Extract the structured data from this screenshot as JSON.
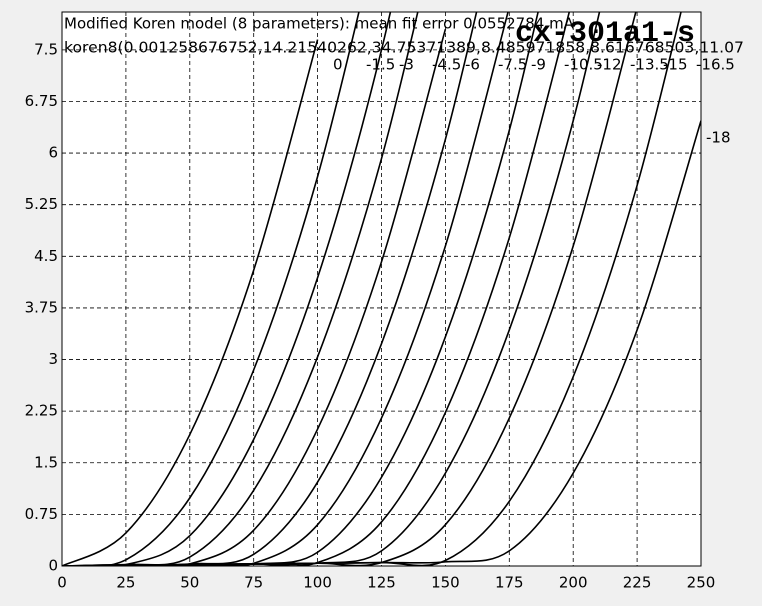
{
  "chart_data": {
    "type": "line",
    "title": "Modified Koren model (8 parameters): mean fit error 0.0552784 mA",
    "subtitle": "koren8(0.001258676752,14.21540262,34.75371389,8.485971858,8.616768503,11.07",
    "annotation": "cx-301a1-s",
    "x": [
      0,
      25,
      50,
      75,
      100,
      125,
      150,
      175,
      200,
      225,
      250
    ],
    "series": [
      {
        "name": "0",
        "color": "#000000",
        "values": [
          0,
          0.48,
          1.91,
          4.3,
          7.65,
          null,
          null,
          null,
          null,
          null,
          null
        ]
      },
      {
        "name": "-1.5",
        "color": "#000000",
        "values": [
          0,
          0.09,
          0.99,
          2.85,
          5.66,
          9.43,
          null,
          null,
          null,
          null,
          null
        ]
      },
      {
        "name": "-3",
        "color": "#000000",
        "values": [
          0,
          0.02,
          0.44,
          1.84,
          4.19,
          7.5,
          11.76,
          null,
          null,
          null,
          null
        ]
      },
      {
        "name": "-4.5",
        "color": "#000000",
        "values": [
          0,
          0.02,
          0.13,
          1.1,
          3.04,
          5.92,
          9.77,
          null,
          null,
          null,
          null
        ]
      },
      {
        "name": "-6",
        "color": "#000000",
        "values": [
          0,
          0.02,
          0.03,
          0.52,
          1.99,
          4.42,
          7.8,
          null,
          null,
          null,
          null
        ]
      },
      {
        "name": "-7.5",
        "color": "#000000",
        "values": [
          0,
          0.02,
          0.03,
          0.17,
          1.22,
          3.23,
          6.2,
          10.12,
          null,
          null,
          null
        ]
      },
      {
        "name": "-9",
        "color": "#000000",
        "values": [
          0,
          0.01,
          0.02,
          0.04,
          0.6,
          2.15,
          4.65,
          8.12,
          null,
          null,
          null
        ]
      },
      {
        "name": "-10.5",
        "color": "#000000",
        "values": [
          0,
          0.01,
          0.02,
          0.03,
          0.2,
          1.29,
          3.33,
          6.33,
          10.29,
          null,
          null
        ]
      },
      {
        "name": "-12",
        "color": "#000000",
        "values": [
          0,
          0.01,
          0.02,
          0.03,
          0.05,
          0.64,
          2.23,
          4.77,
          8.27,
          null,
          null
        ]
      },
      {
        "name": "-13.5",
        "color": "#000000",
        "values": [
          0,
          0.01,
          0.02,
          0.03,
          0.04,
          0.22,
          1.35,
          3.43,
          6.47,
          10.47,
          null
        ]
      },
      {
        "name": "-15",
        "color": "#000000",
        "values": [
          0,
          0.01,
          0.02,
          0.03,
          0.04,
          0.05,
          0.6,
          2.15,
          4.65,
          8.12,
          null
        ]
      },
      {
        "name": "-16.5",
        "color": "#000000",
        "values": [
          0,
          0.01,
          0.02,
          0.03,
          0.04,
          0.05,
          0.08,
          0.94,
          2.75,
          5.53,
          9.26
        ]
      },
      {
        "name": "-18",
        "color": "#000000",
        "values": [
          0,
          0.01,
          0.02,
          0.03,
          0.04,
          0.05,
          0.06,
          0.22,
          1.35,
          3.43,
          6.47
        ]
      }
    ],
    "xlim": [
      0,
      250
    ],
    "xticks": [
      0,
      25,
      50,
      75,
      100,
      125,
      150,
      175,
      200,
      225,
      250
    ],
    "ylim": [
      0,
      8.05
    ],
    "yticks": [
      0,
      0.75,
      1.5,
      2.25,
      3,
      3.75,
      4.5,
      5.25,
      6,
      6.75,
      7.5
    ],
    "grid": true
  }
}
